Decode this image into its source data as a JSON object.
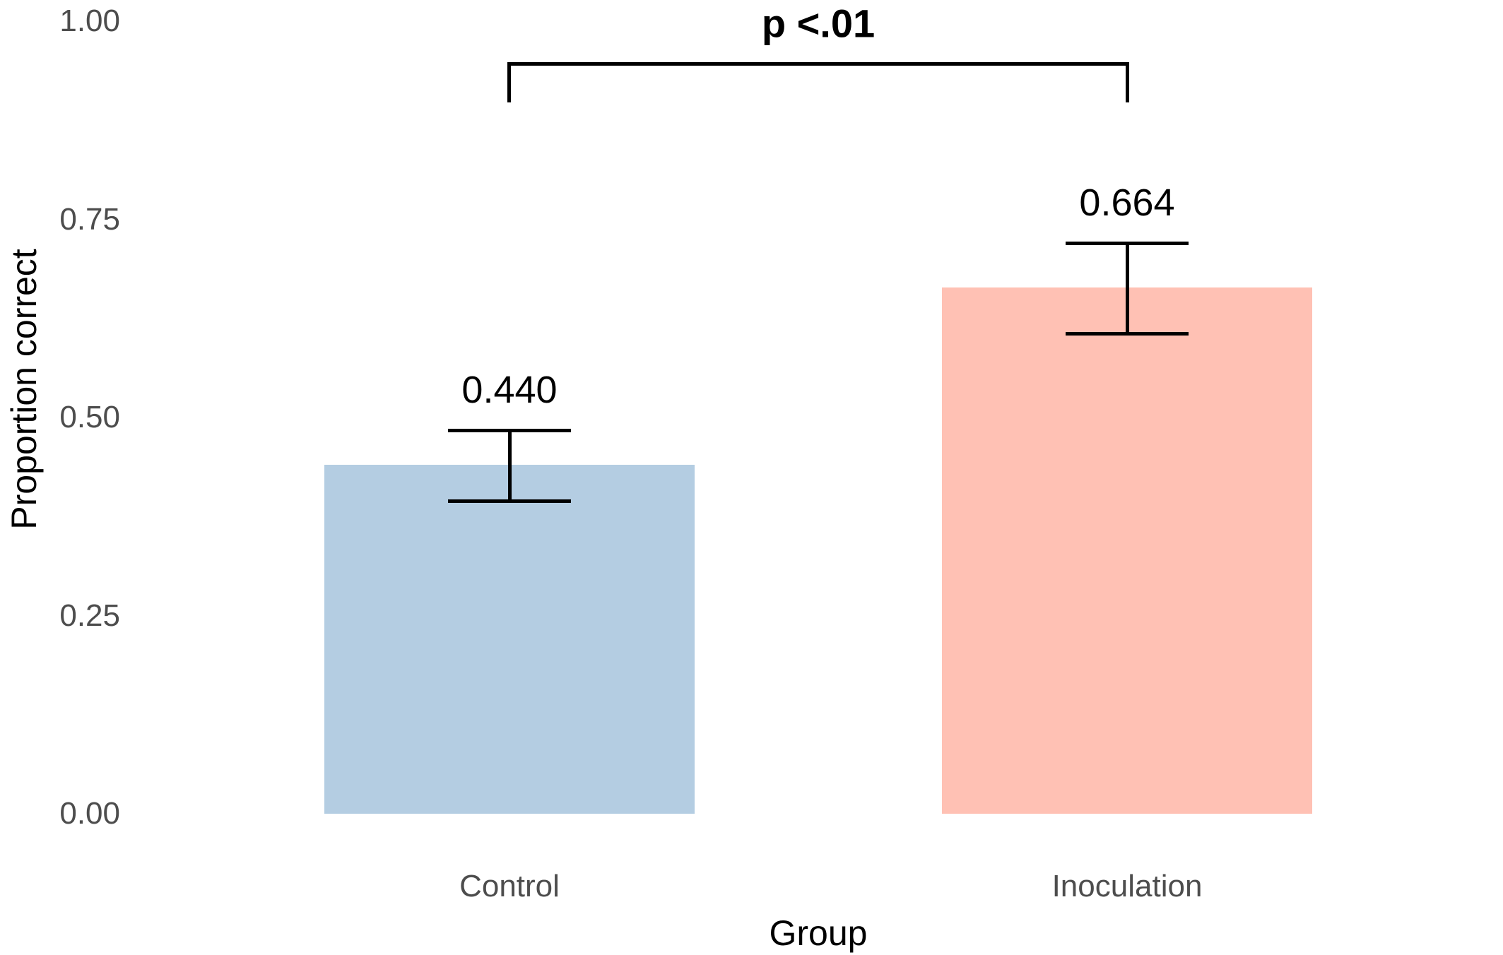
{
  "chart_data": {
    "type": "bar",
    "title": "",
    "xlabel": "Group",
    "ylabel": "Proportion correct",
    "categories": [
      "Control",
      "Inoculation"
    ],
    "values": [
      0.44,
      0.664
    ],
    "value_labels": [
      "0.440",
      "0.664"
    ],
    "error_bars": [
      {
        "low": 0.392,
        "high": 0.486
      },
      {
        "low": 0.603,
        "high": 0.722
      }
    ],
    "bar_colors": [
      "#B4CDE2",
      "#FFC1B4"
    ],
    "ylim": [
      0,
      1
    ],
    "yticks": [
      {
        "value": 1.0,
        "label": "1.00"
      },
      {
        "value": 0.75,
        "label": "0.75"
      },
      {
        "value": 0.5,
        "label": "0.50"
      },
      {
        "value": 0.25,
        "label": "0.25"
      },
      {
        "value": 0.0,
        "label": "0.00"
      }
    ],
    "grid": false,
    "legend": false,
    "annotations": [
      {
        "type": "significance-bracket",
        "label": "p <.01",
        "from": "Control",
        "to": "Inoculation"
      }
    ]
  }
}
